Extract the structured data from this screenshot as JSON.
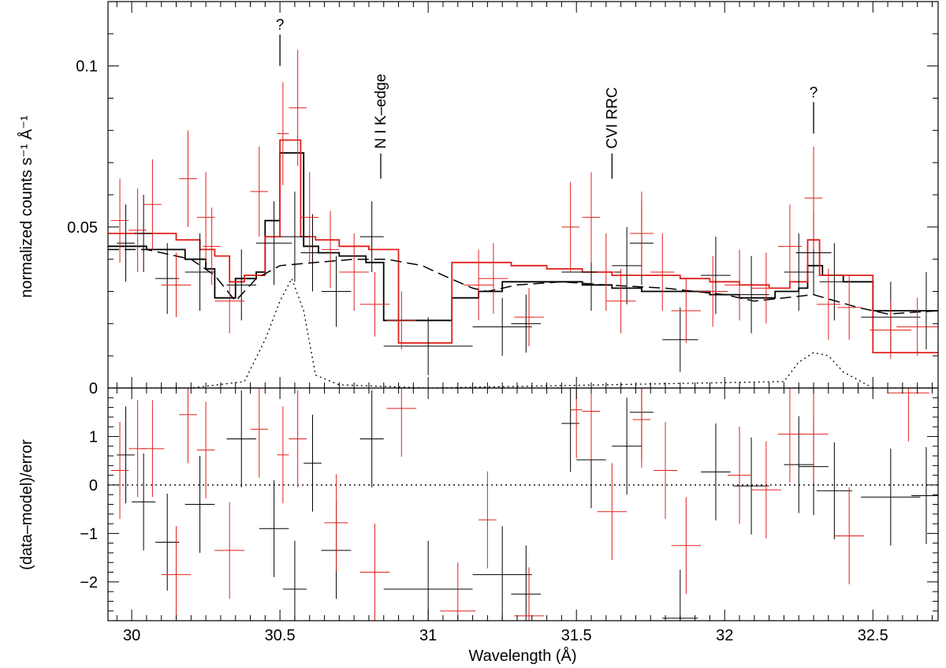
{
  "chart_data": {
    "type": "scatter",
    "xlabel": "Wavelength (Å)",
    "xlim": [
      29.92,
      32.72
    ],
    "x_ticks": [
      30,
      30.5,
      31,
      31.5,
      32,
      32.5
    ],
    "x_tick_labels": [
      "30",
      "30.5",
      "31",
      "31.5",
      "32",
      "32.5"
    ],
    "colors": {
      "black": "#000000",
      "red": "#e0201b"
    },
    "top_panel": {
      "ylabel": "normalized counts s⁻¹ Å⁻¹",
      "ylim": [
        0,
        0.12
      ],
      "y_ticks": [
        0,
        0.05,
        0.1
      ],
      "y_tick_labels": [
        "0",
        "0.05",
        "0.1"
      ],
      "annotations": [
        {
          "text": "?",
          "x": 30.5,
          "value": 0.1,
          "orient": "horizontal"
        },
        {
          "text": "N I K–edge",
          "x": 30.84,
          "value": 0.065,
          "orient": "vertical"
        },
        {
          "text": "CVI RRC",
          "x": 31.62,
          "value": 0.065,
          "orient": "vertical"
        },
        {
          "text": "?",
          "x": 32.3,
          "value": 0.079,
          "orient": "horizontal"
        }
      ],
      "series": [
        {
          "name": "black data",
          "color": "#000000",
          "points": [
            [
              29.98,
              0.045,
              0.03,
              0.012
            ],
            [
              30.04,
              0.048,
              0.03,
              0.012
            ],
            [
              30.12,
              0.034,
              0.04,
              0.011
            ],
            [
              30.23,
              0.036,
              0.05,
              0.012
            ],
            [
              30.37,
              0.032,
              0.05,
              0.011
            ],
            [
              30.48,
              0.045,
              0.06,
              0.013
            ],
            [
              30.55,
              0.047,
              0.05,
              0.014
            ],
            [
              30.61,
              0.042,
              0.04,
              0.012
            ],
            [
              30.69,
              0.03,
              0.05,
              0.011
            ],
            [
              30.81,
              0.047,
              0.04,
              0.011
            ],
            [
              31.0,
              0.013,
              0.15,
              0.009
            ],
            [
              31.25,
              0.019,
              0.1,
              0.009
            ],
            [
              31.33,
              0.02,
              0.05,
              0.009
            ],
            [
              31.55,
              0.036,
              0.1,
              0.012
            ],
            [
              31.67,
              0.038,
              0.05,
              0.012
            ],
            [
              31.72,
              0.045,
              0.04,
              0.013
            ],
            [
              31.85,
              0.015,
              0.06,
              0.01
            ],
            [
              31.97,
              0.035,
              0.05,
              0.012
            ],
            [
              32.09,
              0.029,
              0.06,
              0.012
            ],
            [
              32.25,
              0.036,
              0.05,
              0.012
            ],
            [
              32.3,
              0.042,
              0.06,
              0.013
            ],
            [
              32.37,
              0.033,
              0.05,
              0.012
            ],
            [
              32.56,
              0.022,
              0.1,
              0.011
            ],
            [
              32.68,
              0.024,
              0.05,
              0.012
            ]
          ]
        },
        {
          "name": "red data",
          "color": "#e0201b",
          "points": [
            [
              29.96,
              0.052,
              0.03,
              0.013
            ],
            [
              30.02,
              0.049,
              0.03,
              0.013
            ],
            [
              30.07,
              0.057,
              0.03,
              0.014
            ],
            [
              30.15,
              0.032,
              0.05,
              0.01
            ],
            [
              30.19,
              0.065,
              0.03,
              0.015
            ],
            [
              30.25,
              0.053,
              0.03,
              0.014
            ],
            [
              30.27,
              0.044,
              0.03,
              0.012
            ],
            [
              30.33,
              0.027,
              0.05,
              0.01
            ],
            [
              30.43,
              0.061,
              0.03,
              0.014
            ],
            [
              30.51,
              0.079,
              0.02,
              0.016
            ],
            [
              30.56,
              0.087,
              0.03,
              0.018
            ],
            [
              30.6,
              0.053,
              0.03,
              0.014
            ],
            [
              30.67,
              0.043,
              0.03,
              0.012
            ],
            [
              30.75,
              0.036,
              0.05,
              0.012
            ],
            [
              30.82,
              0.026,
              0.05,
              0.01
            ],
            [
              30.91,
              0.021,
              0.05,
              0.009
            ],
            [
              31.17,
              0.032,
              0.05,
              0.011
            ],
            [
              31.22,
              0.034,
              0.05,
              0.011
            ],
            [
              31.34,
              0.022,
              0.05,
              0.009
            ],
            [
              31.48,
              0.05,
              0.03,
              0.014
            ],
            [
              31.55,
              0.053,
              0.03,
              0.014
            ],
            [
              31.6,
              0.036,
              0.03,
              0.012
            ],
            [
              31.65,
              0.027,
              0.05,
              0.01
            ],
            [
              31.72,
              0.048,
              0.04,
              0.013
            ],
            [
              31.79,
              0.036,
              0.04,
              0.012
            ],
            [
              31.87,
              0.024,
              0.05,
              0.01
            ],
            [
              31.96,
              0.03,
              0.05,
              0.011
            ],
            [
              32.05,
              0.032,
              0.05,
              0.011
            ],
            [
              32.14,
              0.031,
              0.05,
              0.011
            ],
            [
              32.22,
              0.044,
              0.04,
              0.013
            ],
            [
              32.3,
              0.059,
              0.03,
              0.016
            ],
            [
              32.35,
              0.026,
              0.04,
              0.011
            ],
            [
              32.42,
              0.025,
              0.04,
              0.01
            ],
            [
              32.56,
              0.018,
              0.07,
              0.009
            ],
            [
              32.65,
              0.019,
              0.07,
              0.009
            ]
          ]
        }
      ],
      "model_steps": [
        {
          "name": "black model",
          "color": "#000000",
          "edges": [
            29.92,
            29.98,
            30.05,
            30.12,
            30.18,
            30.25,
            30.28,
            30.35,
            30.42,
            30.45,
            30.5,
            30.58,
            30.63,
            30.7,
            30.79,
            30.85,
            30.93,
            31.08,
            31.17,
            31.25,
            31.4,
            31.52,
            31.62,
            31.72,
            31.85,
            31.95,
            32.05,
            32.17,
            32.25,
            32.28,
            32.33,
            32.4,
            32.5,
            32.72
          ],
          "values": [
            0.044,
            0.044,
            0.043,
            0.043,
            0.04,
            0.037,
            0.028,
            0.034,
            0.036,
            0.052,
            0.073,
            0.044,
            0.042,
            0.041,
            0.039,
            0.021,
            0.021,
            0.028,
            0.03,
            0.033,
            0.033,
            0.032,
            0.031,
            0.03,
            0.03,
            0.029,
            0.028,
            0.03,
            0.031,
            0.038,
            0.035,
            0.033,
            0.024
          ]
        },
        {
          "name": "red model",
          "color": "#e0201b",
          "edges": [
            29.92,
            30.05,
            30.15,
            30.23,
            30.28,
            30.33,
            30.38,
            30.45,
            30.5,
            30.57,
            30.62,
            30.7,
            30.8,
            30.9,
            31.0,
            31.08,
            31.15,
            31.28,
            31.4,
            31.52,
            31.62,
            31.72,
            31.85,
            31.95,
            32.05,
            32.15,
            32.22,
            32.28,
            32.32,
            32.4,
            32.5,
            32.72
          ],
          "values": [
            0.048,
            0.048,
            0.046,
            0.043,
            0.041,
            0.033,
            0.035,
            0.047,
            0.077,
            0.047,
            0.046,
            0.044,
            0.043,
            0.014,
            0.014,
            0.039,
            0.039,
            0.038,
            0.037,
            0.036,
            0.035,
            0.035,
            0.034,
            0.033,
            0.032,
            0.031,
            0.033,
            0.046,
            0.035,
            0.035,
            0.011
          ]
        }
      ],
      "continuum_dashed": {
        "x": [
          29.92,
          30.05,
          30.2,
          30.28,
          30.35,
          30.42,
          30.5,
          30.62,
          30.75,
          30.86,
          30.98,
          31.05,
          31.15,
          31.2,
          31.3,
          31.45,
          31.6,
          31.8,
          32.0,
          32.1,
          32.2,
          32.3,
          32.45,
          32.55,
          32.72
        ],
        "y": [
          0.043,
          0.043,
          0.04,
          0.035,
          0.027,
          0.034,
          0.038,
          0.039,
          0.04,
          0.04,
          0.038,
          0.035,
          0.031,
          0.03,
          0.032,
          0.033,
          0.032,
          0.031,
          0.029,
          0.027,
          0.028,
          0.029,
          0.025,
          0.023,
          0.024
        ]
      },
      "gaussian_dotted": {
        "x": [
          29.92,
          30.2,
          30.38,
          30.45,
          30.5,
          30.54,
          30.58,
          30.62,
          30.7,
          31.0,
          32.2,
          32.25,
          32.3,
          32.35,
          32.4,
          32.5,
          32.72
        ],
        "y": [
          0.0,
          0.0,
          0.002,
          0.015,
          0.027,
          0.034,
          0.024,
          0.004,
          0.001,
          0.0,
          0.002,
          0.008,
          0.011,
          0.01,
          0.005,
          0.0,
          0.0
        ]
      }
    },
    "bottom_panel": {
      "ylabel": "(data–model)/error",
      "ylim": [
        -2.8,
        2.0
      ],
      "y_ticks": [
        -2,
        -1,
        0,
        1
      ],
      "y_tick_labels": [
        "−2",
        "−1",
        "0",
        "1"
      ],
      "reference_line": 0,
      "series": [
        {
          "name": "black residuals",
          "color": "#000000",
          "points": [
            [
              29.98,
              0.62,
              0.03
            ],
            [
              30.04,
              -0.35,
              0.04
            ],
            [
              30.12,
              -1.18,
              0.04
            ],
            [
              30.23,
              -0.4,
              0.05
            ],
            [
              30.37,
              0.95,
              0.05
            ],
            [
              30.48,
              -0.9,
              0.05
            ],
            [
              30.55,
              -2.15,
              0.04
            ],
            [
              30.61,
              0.45,
              0.03
            ],
            [
              30.69,
              -1.35,
              0.05
            ],
            [
              30.81,
              0.95,
              0.04
            ],
            [
              31.0,
              -2.15,
              0.15
            ],
            [
              31.25,
              -1.85,
              0.1
            ],
            [
              31.33,
              -2.25,
              0.05
            ],
            [
              31.48,
              1.27,
              0.03
            ],
            [
              31.55,
              0.52,
              0.05
            ],
            [
              31.67,
              0.8,
              0.05
            ],
            [
              31.72,
              1.5,
              0.04
            ],
            [
              31.85,
              -2.75,
              0.06
            ],
            [
              31.97,
              0.27,
              0.05
            ],
            [
              32.09,
              -0.02,
              0.06
            ],
            [
              32.25,
              0.42,
              0.05
            ],
            [
              32.3,
              0.38,
              0.05
            ],
            [
              32.37,
              -0.12,
              0.06
            ],
            [
              32.56,
              -0.25,
              0.1
            ],
            [
              32.68,
              -0.22,
              0.05
            ]
          ]
        },
        {
          "name": "red residuals",
          "color": "#e0201b",
          "points": [
            [
              29.96,
              0.3,
              0.03
            ],
            [
              30.02,
              0.75,
              0.03
            ],
            [
              30.07,
              0.75,
              0.04
            ],
            [
              30.15,
              -1.85,
              0.05
            ],
            [
              30.19,
              1.45,
              0.03
            ],
            [
              30.25,
              0.72,
              0.03
            ],
            [
              30.33,
              -1.35,
              0.05
            ],
            [
              30.43,
              1.15,
              0.03
            ],
            [
              30.51,
              0.62,
              0.02
            ],
            [
              30.56,
              0.95,
              0.03
            ],
            [
              30.69,
              -0.78,
              0.04
            ],
            [
              30.82,
              -1.8,
              0.05
            ],
            [
              30.91,
              1.58,
              0.05
            ],
            [
              31.1,
              -2.6,
              0.06
            ],
            [
              31.2,
              -0.72,
              0.03
            ],
            [
              31.34,
              -2.7,
              0.05
            ],
            [
              31.5,
              1.55,
              0.02
            ],
            [
              31.55,
              1.52,
              0.03
            ],
            [
              31.62,
              -0.55,
              0.05
            ],
            [
              31.72,
              1.35,
              0.03
            ],
            [
              31.8,
              0.3,
              0.04
            ],
            [
              31.87,
              -1.25,
              0.05
            ],
            [
              32.05,
              0.2,
              0.04
            ],
            [
              32.14,
              -0.1,
              0.05
            ],
            [
              32.22,
              1.05,
              0.04
            ],
            [
              32.3,
              1.05,
              0.05
            ],
            [
              32.42,
              -1.05,
              0.05
            ],
            [
              32.62,
              1.9,
              0.07
            ]
          ]
        }
      ]
    }
  }
}
